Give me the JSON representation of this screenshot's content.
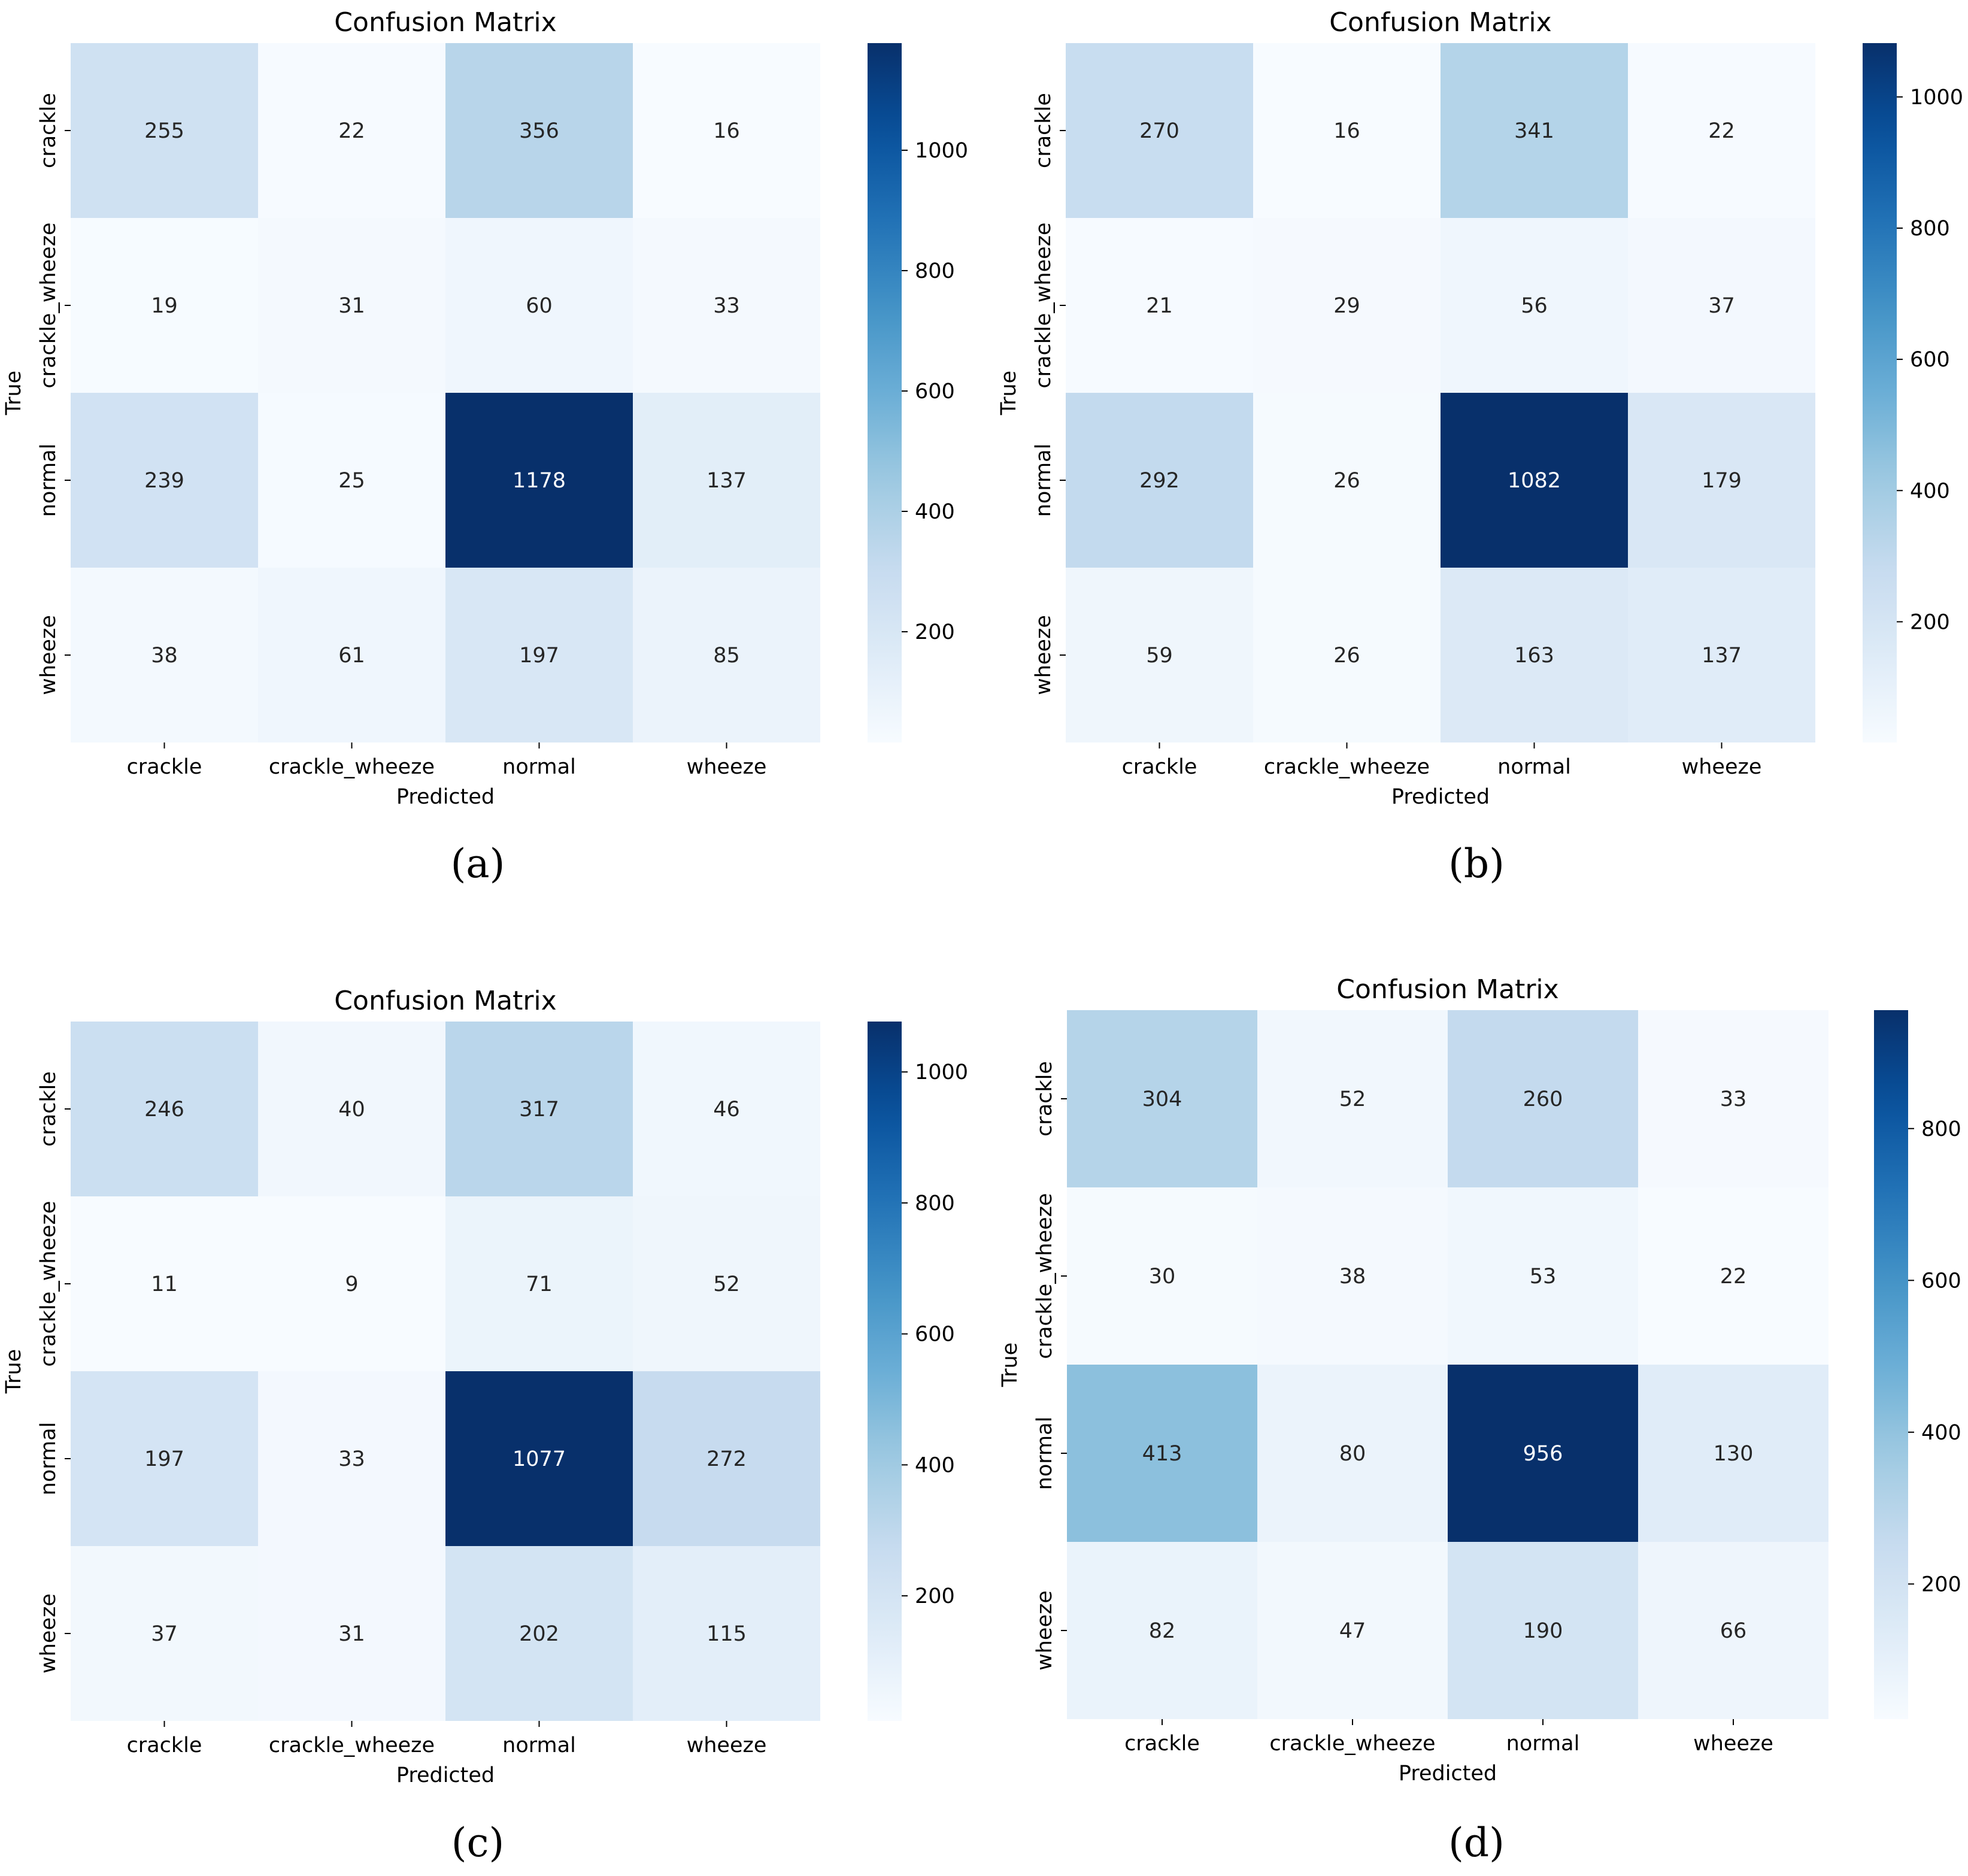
{
  "figure_label": "Four confusion matrices (a)-(d)",
  "colormap": {
    "low": "#f7fbff",
    "high": "#08306b",
    "name": "Blues"
  },
  "chart_data": [
    {
      "type": "heatmap",
      "panel_label": "(a)",
      "title": "Confusion Matrix",
      "xlabel": "Predicted",
      "ylabel": "True",
      "x_categories": [
        "crackle",
        "crackle_wheeze",
        "normal",
        "wheeze"
      ],
      "y_categories": [
        "crackle",
        "crackle_wheeze",
        "normal",
        "wheeze"
      ],
      "values": [
        [
          255,
          22,
          356,
          16
        ],
        [
          19,
          31,
          60,
          33
        ],
        [
          239,
          25,
          1178,
          137
        ],
        [
          38,
          61,
          197,
          85
        ]
      ],
      "colorbar": {
        "min": 16,
        "max": 1178,
        "ticks": [
          200,
          400,
          600,
          800,
          1000
        ]
      }
    },
    {
      "type": "heatmap",
      "panel_label": "(b)",
      "title": "Confusion Matrix",
      "xlabel": "Predicted",
      "ylabel": "True",
      "x_categories": [
        "crackle",
        "crackle_wheeze",
        "normal",
        "wheeze"
      ],
      "y_categories": [
        "crackle",
        "crackle_wheeze",
        "normal",
        "wheeze"
      ],
      "values": [
        [
          270,
          16,
          341,
          22
        ],
        [
          21,
          29,
          56,
          37
        ],
        [
          292,
          26,
          1082,
          179
        ],
        [
          59,
          26,
          163,
          137
        ]
      ],
      "colorbar": {
        "min": 16,
        "max": 1082,
        "ticks": [
          200,
          400,
          600,
          800,
          1000
        ]
      }
    },
    {
      "type": "heatmap",
      "panel_label": "(c)",
      "title": "Confusion Matrix",
      "xlabel": "Predicted",
      "ylabel": "True",
      "x_categories": [
        "crackle",
        "crackle_wheeze",
        "normal",
        "wheeze"
      ],
      "y_categories": [
        "crackle",
        "crackle_wheeze",
        "normal",
        "wheeze"
      ],
      "values": [
        [
          246,
          40,
          317,
          46
        ],
        [
          11,
          9,
          71,
          52
        ],
        [
          197,
          33,
          1077,
          272
        ],
        [
          37,
          31,
          202,
          115
        ]
      ],
      "colorbar": {
        "min": 9,
        "max": 1077,
        "ticks": [
          200,
          400,
          600,
          800,
          1000
        ]
      }
    },
    {
      "type": "heatmap",
      "panel_label": "(d)",
      "title": "Confusion Matrix",
      "xlabel": "Predicted",
      "ylabel": "True",
      "x_categories": [
        "crackle",
        "crackle_wheeze",
        "normal",
        "wheeze"
      ],
      "y_categories": [
        "crackle",
        "crackle_wheeze",
        "normal",
        "wheeze"
      ],
      "values": [
        [
          304,
          52,
          260,
          33
        ],
        [
          30,
          38,
          53,
          22
        ],
        [
          413,
          80,
          956,
          130
        ],
        [
          82,
          47,
          190,
          66
        ]
      ],
      "colorbar": {
        "min": 22,
        "max": 956,
        "ticks": [
          200,
          400,
          600,
          800
        ]
      }
    }
  ]
}
